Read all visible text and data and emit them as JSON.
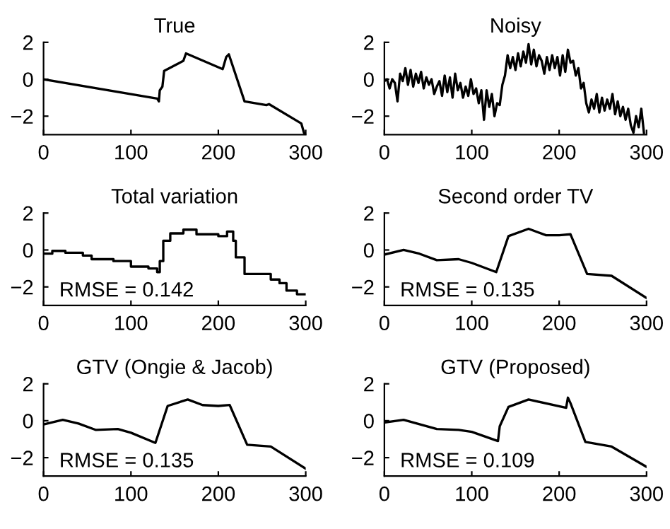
{
  "chart_data": [
    {
      "type": "line",
      "title": "True",
      "xlim": [
        0,
        300
      ],
      "ylim": [
        -3,
        2
      ],
      "xticks": [
        0,
        100,
        200,
        300
      ],
      "yticks": [
        -2,
        0,
        2
      ],
      "grid": false,
      "series": [
        {
          "color": "#000000",
          "x": [
            0,
            130,
            132,
            133,
            136,
            138,
            150,
            160,
            163,
            205,
            209,
            212,
            230,
            255,
            258,
            295,
            298,
            300
          ],
          "values": [
            0,
            -1.05,
            -1.2,
            -0.6,
            -0.4,
            0.45,
            0.75,
            1.0,
            1.4,
            0.55,
            1.2,
            1.35,
            -1.2,
            -1.4,
            -1.35,
            -2.4,
            -2.9,
            -3.0
          ]
        }
      ]
    },
    {
      "type": "line",
      "title": "Noisy",
      "xlim": [
        0,
        300
      ],
      "ylim": [
        -3,
        2
      ],
      "xticks": [
        0,
        100,
        200,
        300
      ],
      "yticks": [
        -2,
        0,
        2
      ],
      "grid": false,
      "series": [
        {
          "color": "#000000",
          "x": [
            0,
            3,
            6,
            9,
            12,
            15,
            18,
            21,
            24,
            27,
            30,
            33,
            36,
            39,
            42,
            45,
            48,
            51,
            54,
            57,
            60,
            63,
            66,
            69,
            72,
            75,
            78,
            81,
            84,
            87,
            90,
            93,
            96,
            99,
            102,
            105,
            108,
            111,
            114,
            117,
            120,
            123,
            126,
            129,
            132,
            135,
            138,
            141,
            144,
            147,
            150,
            153,
            156,
            159,
            162,
            165,
            168,
            171,
            174,
            177,
            180,
            183,
            186,
            189,
            192,
            195,
            198,
            201,
            204,
            207,
            210,
            213,
            216,
            219,
            222,
            225,
            228,
            231,
            234,
            237,
            240,
            243,
            246,
            249,
            252,
            255,
            258,
            261,
            264,
            267,
            270,
            273,
            276,
            279,
            282,
            285,
            288,
            291,
            294,
            297
          ],
          "values": [
            -0.1,
            0.0,
            -0.5,
            0.0,
            -0.2,
            -1.2,
            0.3,
            -0.1,
            0.6,
            -0.3,
            0.5,
            -0.4,
            0.3,
            -0.2,
            0.4,
            -0.5,
            0.1,
            -0.3,
            0.0,
            -0.8,
            -0.4,
            -0.1,
            -0.9,
            0.2,
            -0.7,
            0.1,
            -1.0,
            0.3,
            -0.6,
            -0.2,
            -1.0,
            -0.4,
            -0.9,
            0.0,
            -0.8,
            -0.5,
            -1.3,
            -0.6,
            -2.2,
            -0.6,
            -1.5,
            -0.8,
            -2.0,
            -1.3,
            -1.4,
            -0.3,
            0.2,
            1.3,
            0.6,
            1.2,
            0.5,
            1.4,
            0.7,
            1.5,
            0.9,
            1.9,
            0.8,
            1.6,
            0.7,
            1.3,
            1.0,
            0.3,
            1.2,
            0.5,
            1.3,
            0.6,
            1.2,
            0.2,
            1.3,
            0.4,
            1.6,
            0.9,
            1.0,
            0.2,
            0.6,
            -0.5,
            -0.2,
            -1.3,
            -1.8,
            -1.1,
            -1.6,
            -0.8,
            -1.8,
            -1.0,
            -1.7,
            -1.1,
            -1.6,
            -0.8,
            -1.9,
            -1.2,
            -2.0,
            -1.5,
            -2.2,
            -1.6,
            -2.5,
            -2.9,
            -2.0,
            -2.6,
            -1.6,
            -2.9
          ]
        }
      ]
    },
    {
      "type": "step",
      "title": "Total variation",
      "xlim": [
        0,
        300
      ],
      "ylim": [
        -3,
        2
      ],
      "xticks": [
        0,
        100,
        200,
        300
      ],
      "yticks": [
        -2,
        0,
        2
      ],
      "grid": false,
      "annotations": [
        "RMSE = 0.142"
      ],
      "series": [
        {
          "color": "#000000",
          "x": [
            0,
            10,
            25,
            45,
            55,
            80,
            100,
            120,
            130,
            133,
            137,
            145,
            160,
            175,
            200,
            210,
            217,
            220,
            230,
            260,
            270,
            278,
            290,
            300
          ],
          "values": [
            -0.2,
            -0.05,
            -0.15,
            -0.3,
            -0.5,
            -0.6,
            -0.9,
            -1.0,
            -1.2,
            -0.6,
            0.5,
            0.9,
            1.1,
            0.85,
            0.75,
            1.0,
            0.5,
            -0.4,
            -1.3,
            -1.6,
            -1.8,
            -2.2,
            -2.4,
            -2.4
          ]
        }
      ]
    },
    {
      "type": "line",
      "title": "Second order TV",
      "xlim": [
        0,
        300
      ],
      "ylim": [
        -3,
        2
      ],
      "xticks": [
        0,
        100,
        200,
        300
      ],
      "yticks": [
        -2,
        0,
        2
      ],
      "grid": false,
      "annotations": [
        "RMSE = 0.135"
      ],
      "series": [
        {
          "color": "#000000",
          "x": [
            0,
            22,
            40,
            60,
            85,
            100,
            128,
            142,
            165,
            185,
            200,
            213,
            232,
            260,
            300
          ],
          "values": [
            -0.25,
            0.0,
            -0.2,
            -0.55,
            -0.5,
            -0.7,
            -1.2,
            0.75,
            1.15,
            0.8,
            0.8,
            0.85,
            -1.3,
            -1.4,
            -2.6
          ]
        }
      ]
    },
    {
      "type": "line",
      "title": "GTV (Ongie & Jacob)",
      "xlim": [
        0,
        300
      ],
      "ylim": [
        -3,
        2
      ],
      "xticks": [
        0,
        100,
        200,
        300
      ],
      "yticks": [
        -2,
        0,
        2
      ],
      "grid": false,
      "annotations": [
        "RMSE = 0.135"
      ],
      "series": [
        {
          "color": "#000000",
          "x": [
            0,
            22,
            40,
            60,
            85,
            100,
            128,
            142,
            165,
            182,
            200,
            213,
            233,
            260,
            300
          ],
          "values": [
            -0.2,
            0.05,
            -0.15,
            -0.5,
            -0.45,
            -0.65,
            -1.2,
            0.8,
            1.15,
            0.85,
            0.8,
            0.85,
            -1.3,
            -1.4,
            -2.6
          ]
        }
      ]
    },
    {
      "type": "line",
      "title": "GTV (Proposed)",
      "xlim": [
        0,
        300
      ],
      "ylim": [
        -3,
        2
      ],
      "xticks": [
        0,
        100,
        200,
        300
      ],
      "yticks": [
        -2,
        0,
        2
      ],
      "grid": false,
      "annotations": [
        "RMSE = 0.109"
      ],
      "series": [
        {
          "color": "#000000",
          "x": [
            0,
            22,
            60,
            85,
            100,
            127,
            130,
            132,
            142,
            165,
            208,
            210,
            213,
            230,
            260,
            300
          ],
          "values": [
            -0.1,
            0.05,
            -0.45,
            -0.5,
            -0.6,
            -1.05,
            -1.1,
            -0.3,
            0.75,
            1.15,
            0.7,
            1.25,
            0.95,
            -1.15,
            -1.4,
            -2.5
          ]
        }
      ]
    }
  ]
}
